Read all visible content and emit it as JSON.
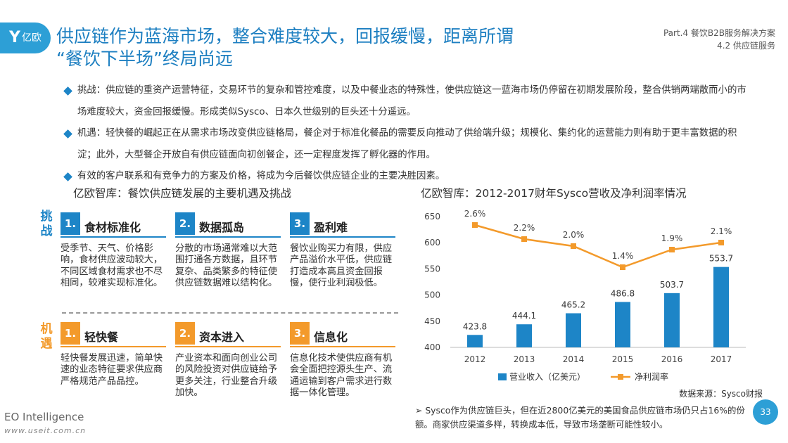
{
  "logo": {
    "mark": "Y",
    "text": "亿欧"
  },
  "title": {
    "line1": "供应链作为蓝海市场，整合难度较大，回报缓慢，距离所谓",
    "line2": "“餐饮下半场”终局尚远"
  },
  "part": {
    "line1": "Part.4 餐饮B2B服务解决方案",
    "line2": "4.2 供应链服务"
  },
  "bullets": [
    "挑战：供应链的重资产运营特征，交易环节的复杂和管控难度，以及中餐业态的特殊性，使供应链这一蓝海市场仍停留在初期发展阶段，整合供销两端散而小的市场难度较大，资金回报缓慢。形成类似Sysco、日本久世级别的巨头还十分遥远。",
    "机遇：轻快餐的崛起正在从需求市场改变供应链格局，餐企对于标准化餐品的需要反向推动了供给端升级；规模化、集约化的运营能力则有助于更丰富数据的积淀；此外，大型餐企开放自有供应链面向初创餐企，还一定程度发挥了孵化器的作用。",
    "有效的客户联系和有竞争力的方案及价格，将成为今后餐饮供应链企业的主要决胜因素。"
  ],
  "left_title": "亿欧智库：餐饮供应链发展的主要机遇及挑战",
  "challenge_label": "挑战",
  "opportunity_label": "机遇",
  "challenges": [
    {
      "num": "1.",
      "title": "食材标准化",
      "body": "受季节、天气、价格影响，食材供应波动较大，不同区域食材需求也不尽相同，较难实现标准化。"
    },
    {
      "num": "2.",
      "title": "数据孤岛",
      "body": "分散的市场通常难以大范围打通各方数据，且环节复杂、品类繁多的特征使供应链数据难以结构化。"
    },
    {
      "num": "3.",
      "title": "盈利难",
      "body": "餐饮业购买力有限，供应产品溢价水平低，供应链打造成本高且资金回报慢，使行业利润极低。"
    }
  ],
  "opportunities": [
    {
      "num": "1.",
      "title": "轻快餐",
      "body": "轻快餐发展迅速，简单快速的业态特征要求供应商严格规范产品品控。"
    },
    {
      "num": "2.",
      "title": "资本进入",
      "body": "产业资本和面向创业公司的风险投资对供应链给予更多关注，行业整合升级加快。"
    },
    {
      "num": "3.",
      "title": "信息化",
      "body": "信息化技术使供应商有机会全面把控源头生产、流通运输到客户需求进行数据一体化管理。"
    }
  ],
  "colors": {
    "blue": "#1d85c7",
    "orange": "#f39a2b"
  },
  "chart_data": {
    "type": "bar",
    "title": "亿欧智库：2012-2017财年Sysco营收及净利润率情况",
    "categories": [
      "2012",
      "2013",
      "2014",
      "2015",
      "2016",
      "2017"
    ],
    "ylim": [
      400,
      650
    ],
    "yticks": [
      "650",
      "600",
      "550",
      "500",
      "450",
      "400"
    ],
    "series": [
      {
        "name": "营业收入（亿美元）",
        "type": "bar",
        "values": [
          423.8,
          444.1,
          465.2,
          486.8,
          503.7,
          553.7
        ],
        "labels": [
          "423.8",
          "444.1",
          "465.2",
          "486.8",
          "503.7",
          "553.7"
        ],
        "color": "#1d85c7"
      },
      {
        "name": "净利润率",
        "type": "line",
        "values": [
          2.6,
          2.2,
          2.0,
          1.4,
          1.9,
          2.1
        ],
        "labels": [
          "2.6%",
          "2.2%",
          "2.0%",
          "1.4%",
          "1.9%",
          "2.1%"
        ],
        "color": "#f39a2b"
      }
    ]
  },
  "source": "数据来源：Sysco财报",
  "note": "➢ Sysco作为供应链巨头，但在近2800亿美元的美国食品供应链市场仍只占16%的份额。商家供应渠道多样，转换成本低，导致市场垄断可能性较小。",
  "page_number": "33",
  "footer": {
    "brand": "EO Intelligence",
    "url": "www.useit.com.cn"
  }
}
